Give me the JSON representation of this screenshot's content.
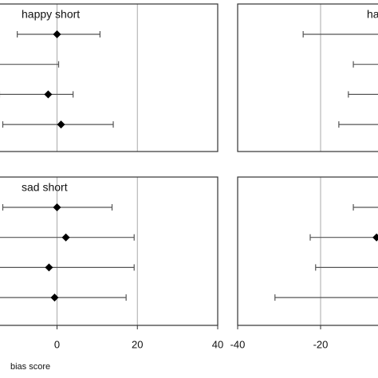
{
  "chart_data": [
    {
      "type": "errorbar",
      "title": "happy short",
      "xlim": [
        -40,
        40
      ],
      "xticks": [
        0,
        20,
        40
      ],
      "show_tick_labels": false,
      "grid": true,
      "values": [
        0,
        null,
        -2.2,
        1
      ],
      "low": [
        -9.9,
        null,
        -14.3,
        -13.5
      ],
      "high": [
        10.7,
        0.4,
        4,
        14
      ],
      "color": "#000000"
    },
    {
      "type": "errorbar",
      "title": "sad short",
      "xlabel": "bias score",
      "xlim": [
        -40,
        40
      ],
      "xticks": [
        0,
        20,
        40
      ],
      "show_tick_labels": true,
      "grid": true,
      "values": [
        0,
        2.2,
        -2,
        -0.6
      ],
      "low": [
        -13.5,
        null,
        null,
        null
      ],
      "high": [
        13.7,
        19.2,
        19.2,
        17.2
      ],
      "color": "#000000"
    },
    {
      "type": "errorbar",
      "title": "ha",
      "xlim": [
        -40,
        40
      ],
      "xticks": [
        -40,
        -20
      ],
      "show_tick_labels": false,
      "grid": true,
      "values": [
        null,
        null,
        null,
        null
      ],
      "low": [
        -24.2,
        -12.1,
        -13.3,
        -15.6
      ],
      "high": [
        null,
        null,
        null,
        null
      ],
      "color": "#000000"
    },
    {
      "type": "errorbar",
      "xlim": [
        -40,
        40
      ],
      "xticks": [
        -40,
        -20
      ],
      "show_tick_labels": true,
      "grid": true,
      "values": [
        null,
        -6.5,
        null,
        null
      ],
      "low": [
        -12.1,
        -22.5,
        -21.2,
        -31
      ],
      "high": [
        null,
        null,
        null,
        null
      ],
      "color": "#000000"
    }
  ]
}
